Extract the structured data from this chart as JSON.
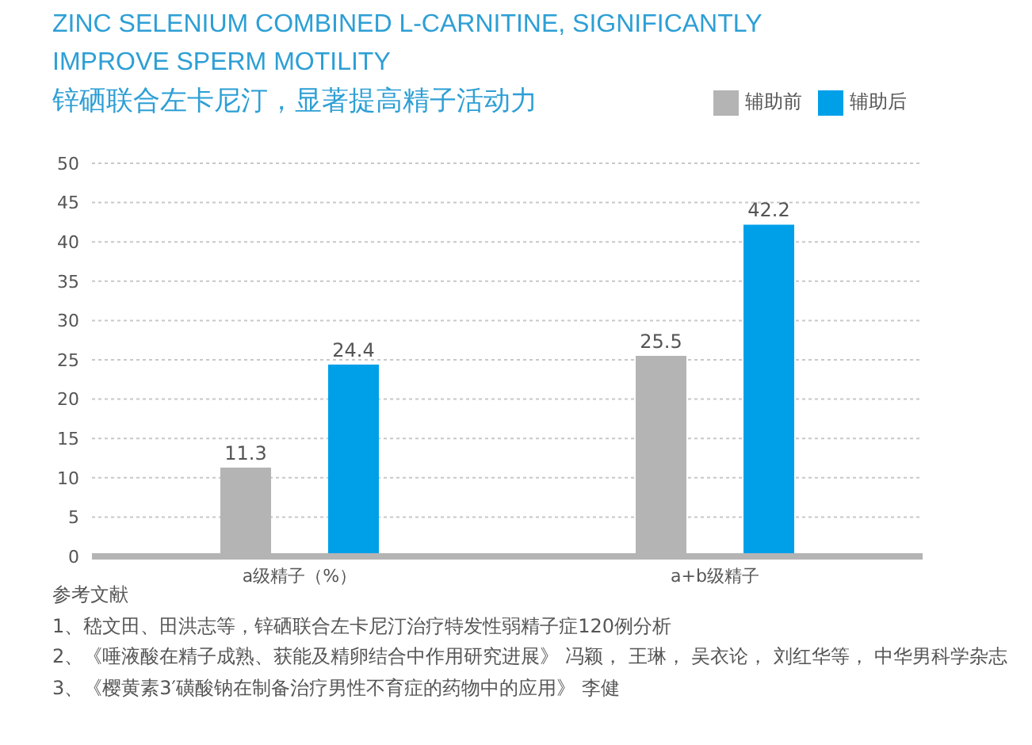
{
  "chart_data": {
    "type": "bar",
    "title": "ZINC SELENIUM COMBINED L-CARNITINE, SIGNIFICANTLY IMPROVE SPERM MOTILITY",
    "subtitle": "锌硒联合左卡尼汀，显著提高精子活动力",
    "categories": [
      "a级精子（%）",
      "a+b级精子"
    ],
    "series": [
      {
        "name": "辅助前",
        "color": "#b4b4b4",
        "values": [
          11.3,
          25.5
        ]
      },
      {
        "name": "辅助后",
        "color": "#00a0e9",
        "values": [
          24.4,
          42.2
        ]
      }
    ],
    "ylim": [
      0,
      50
    ],
    "yticks": [
      0,
      5,
      10,
      15,
      20,
      25,
      30,
      35,
      40,
      45,
      50
    ],
    "grid": "y",
    "legend": "top right",
    "data_labels": true,
    "annotations": [
      "参考文献",
      "1、嵇文田、田洪志等，锌硒联合左卡尼汀治疗特发性弱精子症120例分析",
      "2、《唾液酸在精子成熟、获能及精卵结合中作用研究进展》 冯颖， 王琳， 吴衣论， 刘红华等， 中华男科学杂志",
      "3、《樱黄素3′磺酸钠在制备治疗男性不育症的药物中的应用》 李健"
    ]
  }
}
